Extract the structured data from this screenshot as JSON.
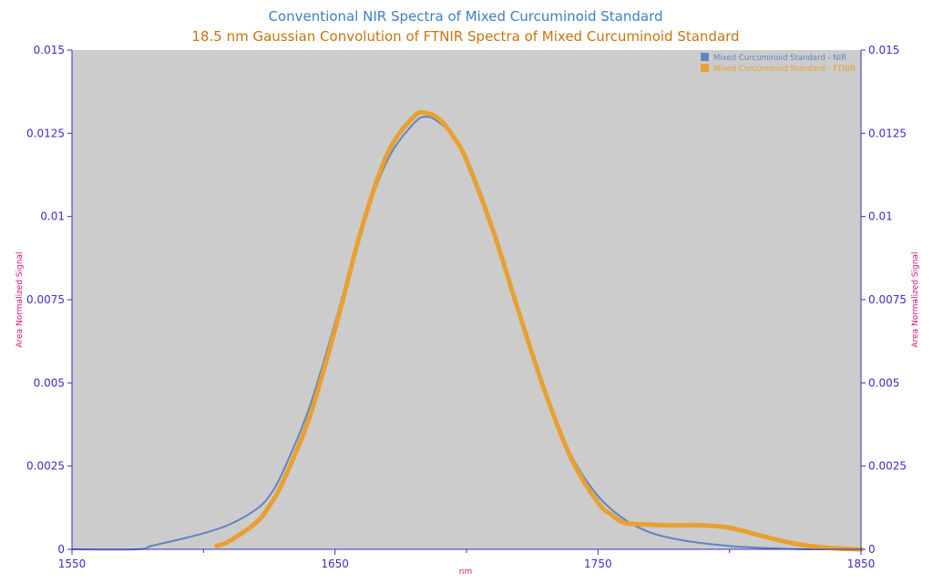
{
  "chart_data": {
    "type": "line",
    "title": "Conventional NIR Spectra of Mixed Curcuminoid Standard",
    "subtitle": "18.5 nm Gaussian Convolution of FTNIR Spectra of Mixed Curcuminoid Standard",
    "xlabel": "nm",
    "ylabel": "Area Normalized Signal",
    "xlim": [
      1550,
      1850
    ],
    "ylim": [
      0,
      0.015
    ],
    "x_ticks": [
      "1550",
      "1650",
      "1750",
      "1850"
    ],
    "y_ticks": [
      "0",
      "0.0025",
      "0.005",
      "0.0075",
      "0.01",
      "0.0125",
      "0.015"
    ],
    "grid": false,
    "legend_position": "top-right",
    "colors": {
      "plot_bg": "#cccccc",
      "axis": "#3a2fc4",
      "title_1": "#3f7fc2",
      "title_2": "#c87410",
      "axis_title": "#e0116f",
      "nir": "#5f85c3",
      "ftnir": "#e8a030"
    },
    "series": [
      {
        "name": "Mixed Curcuminoid Standard - NIR",
        "color": "#5f85c3",
        "x": [
          1550,
          1575,
          1580,
          1590,
          1600,
          1610,
          1620,
          1625,
          1630,
          1640,
          1650,
          1660,
          1670,
          1680,
          1685,
          1690,
          1695,
          1700,
          1710,
          1720,
          1730,
          1740,
          1750,
          1760,
          1770,
          1780,
          1790,
          1800,
          1810,
          1820,
          1830,
          1850
        ],
        "values": [
          0,
          0,
          0.0001,
          0.00028,
          0.00048,
          0.00075,
          0.0012,
          0.0016,
          0.0023,
          0.0042,
          0.0068,
          0.0096,
          0.0117,
          0.0128,
          0.013,
          0.0128,
          0.0124,
          0.0116,
          0.0095,
          0.007,
          0.0047,
          0.0028,
          0.0016,
          0.0009,
          0.0005,
          0.0003,
          0.00018,
          0.0001,
          5e-05,
          2e-05,
          0,
          0
        ]
      },
      {
        "name": "Mixed Curcuminoid Standard - FTNIR",
        "color": "#e8a030",
        "x": [
          1605,
          1610,
          1620,
          1625,
          1630,
          1640,
          1650,
          1660,
          1670,
          1680,
          1685,
          1690,
          1695,
          1700,
          1710,
          1720,
          1730,
          1740,
          1750,
          1755,
          1760,
          1770,
          1780,
          1790,
          1800,
          1810,
          1820,
          1830,
          1840,
          1850
        ],
        "values": [
          0.0001,
          0.00025,
          0.0008,
          0.0013,
          0.002,
          0.0039,
          0.0066,
          0.0096,
          0.0119,
          0.013,
          0.0131,
          0.0129,
          0.0124,
          0.0117,
          0.0096,
          0.0071,
          0.0047,
          0.0027,
          0.0014,
          0.00105,
          0.0008,
          0.00074,
          0.00072,
          0.00072,
          0.00065,
          0.00045,
          0.00025,
          0.0001,
          3e-05,
          0
        ]
      }
    ]
  }
}
